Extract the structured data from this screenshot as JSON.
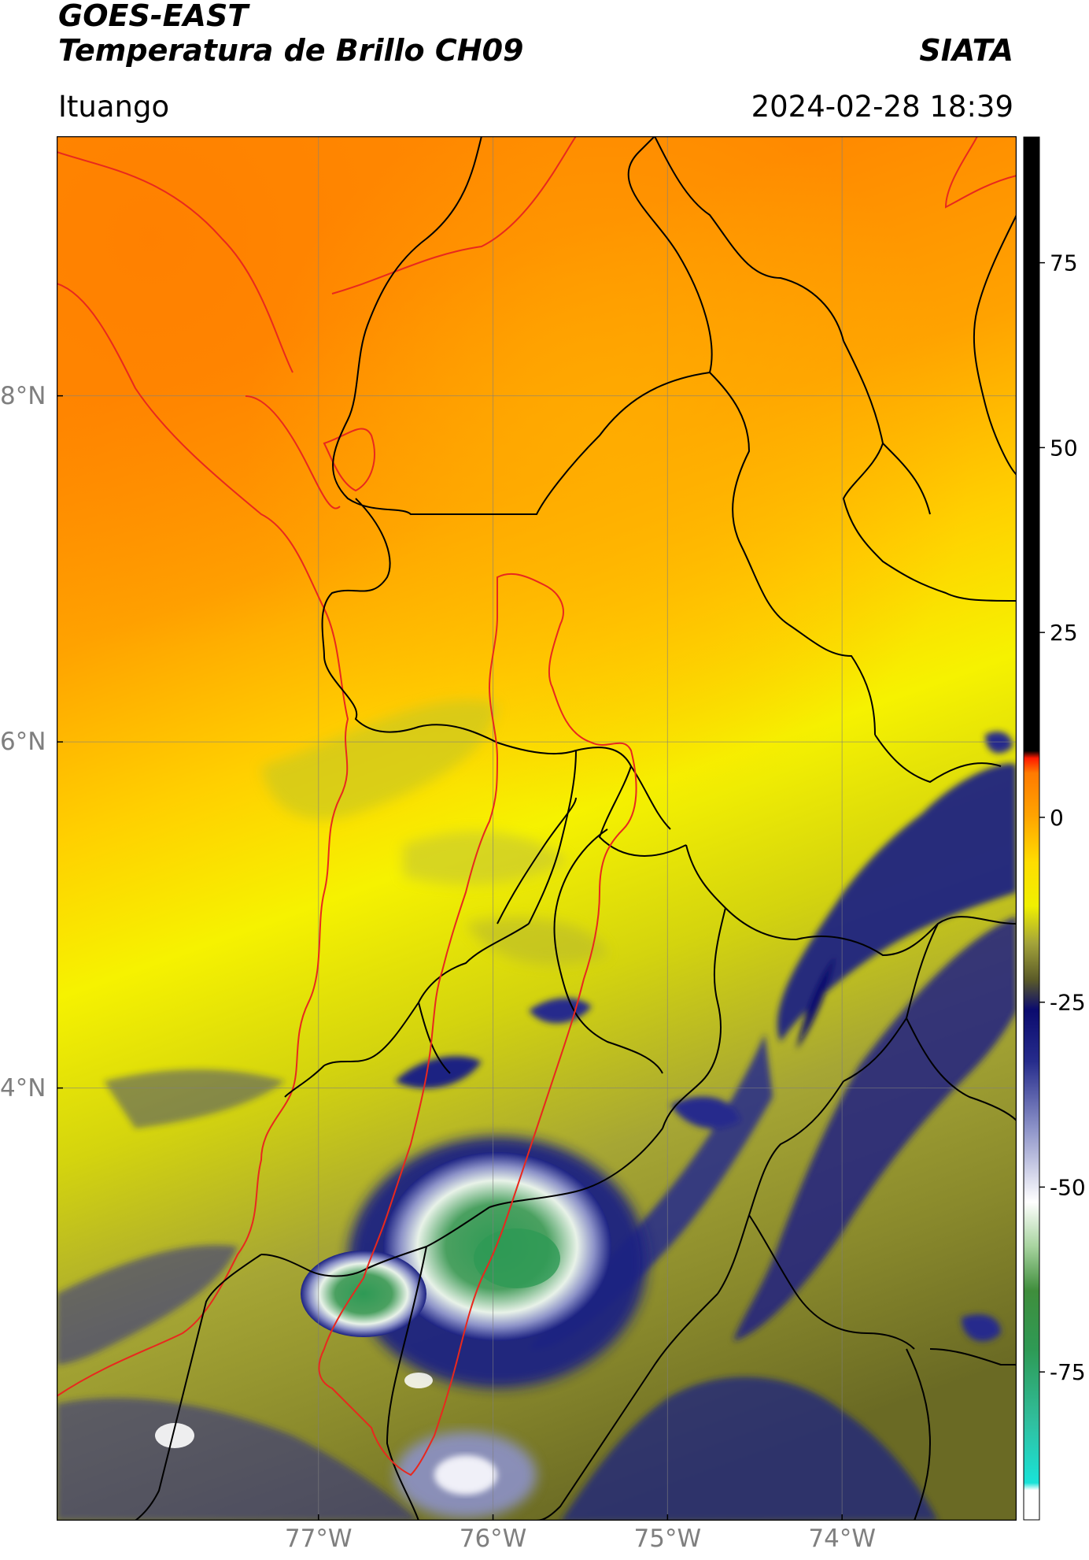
{
  "header": {
    "satellite": "GOES-EAST",
    "product": "Temperatura de Brillo CH09",
    "org": "SIATA",
    "region": "Ituango",
    "datetime": "2024-02-28 18:39"
  },
  "map": {
    "lon_range": [
      -78.5,
      -73.0
    ],
    "lat_range": [
      1.5,
      9.5
    ],
    "lon_ticks": [
      "77°W",
      "76°W",
      "75°W",
      "74°W"
    ],
    "lon_tick_values": [
      -77,
      -76,
      -75,
      -74
    ],
    "lat_ticks": [
      "8°N",
      "6°N",
      "4°N"
    ],
    "lat_tick_values": [
      8,
      6,
      4
    ],
    "grid": true,
    "coastline_color": "#e8281e",
    "boundary_color": "#000000",
    "basin_color": "#e8281e"
  },
  "colorbar": {
    "range": [
      -95,
      92
    ],
    "ticks": [
      75,
      50,
      25,
      0,
      -25,
      -50,
      -75
    ],
    "tick_labels": [
      "75",
      "50",
      "25",
      "0",
      "-25",
      "-50",
      "-75"
    ],
    "stops": [
      {
        "value": -95,
        "color": "#ffffff"
      },
      {
        "value": -91,
        "color": "#ffffff"
      },
      {
        "value": -90,
        "color": "#19e3d8"
      },
      {
        "value": -82,
        "color": "#30c0a0"
      },
      {
        "value": -72,
        "color": "#2e9a55"
      },
      {
        "value": -64,
        "color": "#3f8e3c"
      },
      {
        "value": -58,
        "color": "#a8d4a0"
      },
      {
        "value": -52,
        "color": "#ffffff"
      },
      {
        "value": -42,
        "color": "#8c92c8"
      },
      {
        "value": -33,
        "color": "#262c8c"
      },
      {
        "value": -26,
        "color": "#0b0b6e"
      },
      {
        "value": -22,
        "color": "#5a5a28"
      },
      {
        "value": -17,
        "color": "#a4a43a"
      },
      {
        "value": -12,
        "color": "#f0f000"
      },
      {
        "value": -6,
        "color": "#ffdd00"
      },
      {
        "value": 0,
        "color": "#ffa500"
      },
      {
        "value": 6,
        "color": "#ff7a00"
      },
      {
        "value": 8,
        "color": "#ff1a00"
      },
      {
        "value": 9,
        "color": "#000000"
      },
      {
        "value": 92,
        "color": "#000000"
      }
    ]
  }
}
